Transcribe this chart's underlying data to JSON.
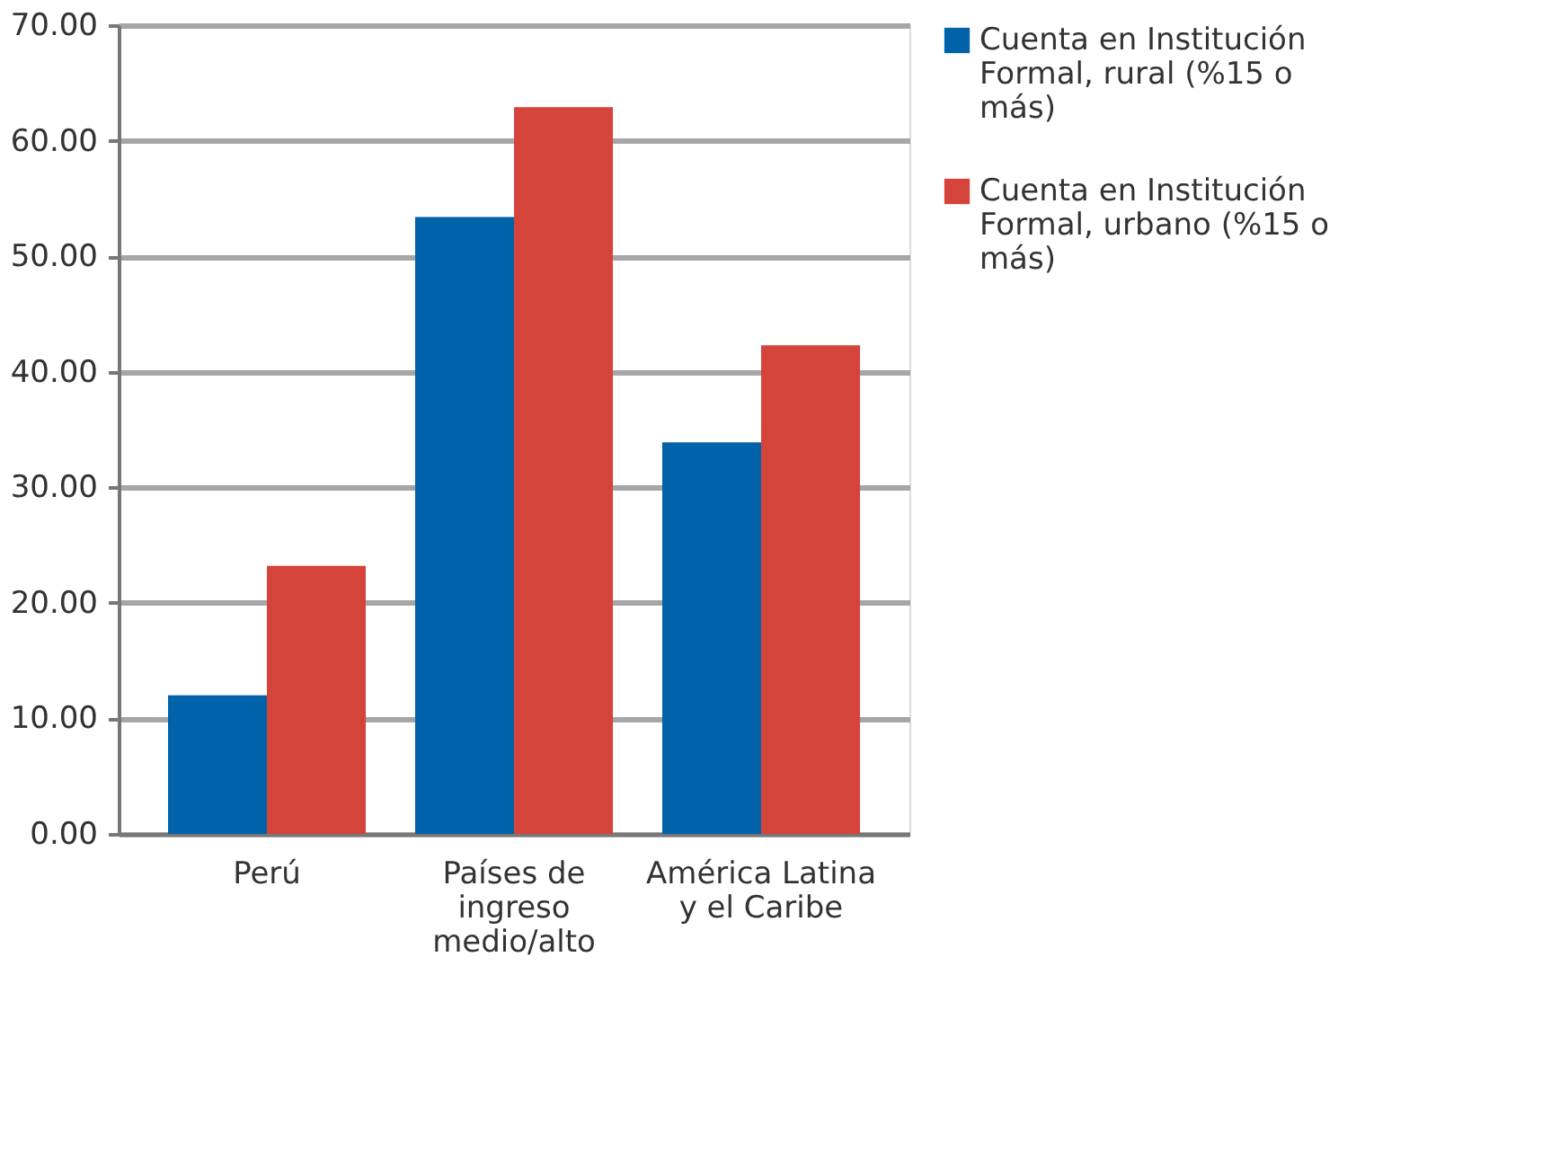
{
  "chart_data": {
    "type": "bar",
    "categories": [
      "Perú",
      "Países de ingreso medio/alto",
      "América Latina y el Caribe"
    ],
    "series": [
      {
        "name": "Cuenta en Institución Formal, rural (%15 o más)",
        "color": "#0062a9",
        "values": [
          12.0,
          53.4,
          33.9
        ]
      },
      {
        "name": "Cuenta en Institución Formal, urbano (%15 o más)",
        "color": "#d5443b",
        "values": [
          23.2,
          62.9,
          42.3
        ]
      }
    ],
    "ylim": [
      0,
      70
    ],
    "yticks": [
      {
        "value": 0,
        "label": "0.00"
      },
      {
        "value": 10,
        "label": "10.00"
      },
      {
        "value": 20,
        "label": "20.00"
      },
      {
        "value": 30,
        "label": "30.00"
      },
      {
        "value": 40,
        "label": "40.00"
      },
      {
        "value": 50,
        "label": "50.00"
      },
      {
        "value": 60,
        "label": "60.00"
      },
      {
        "value": 70,
        "label": "70.00"
      }
    ],
    "grid": "y",
    "legend": "right"
  }
}
